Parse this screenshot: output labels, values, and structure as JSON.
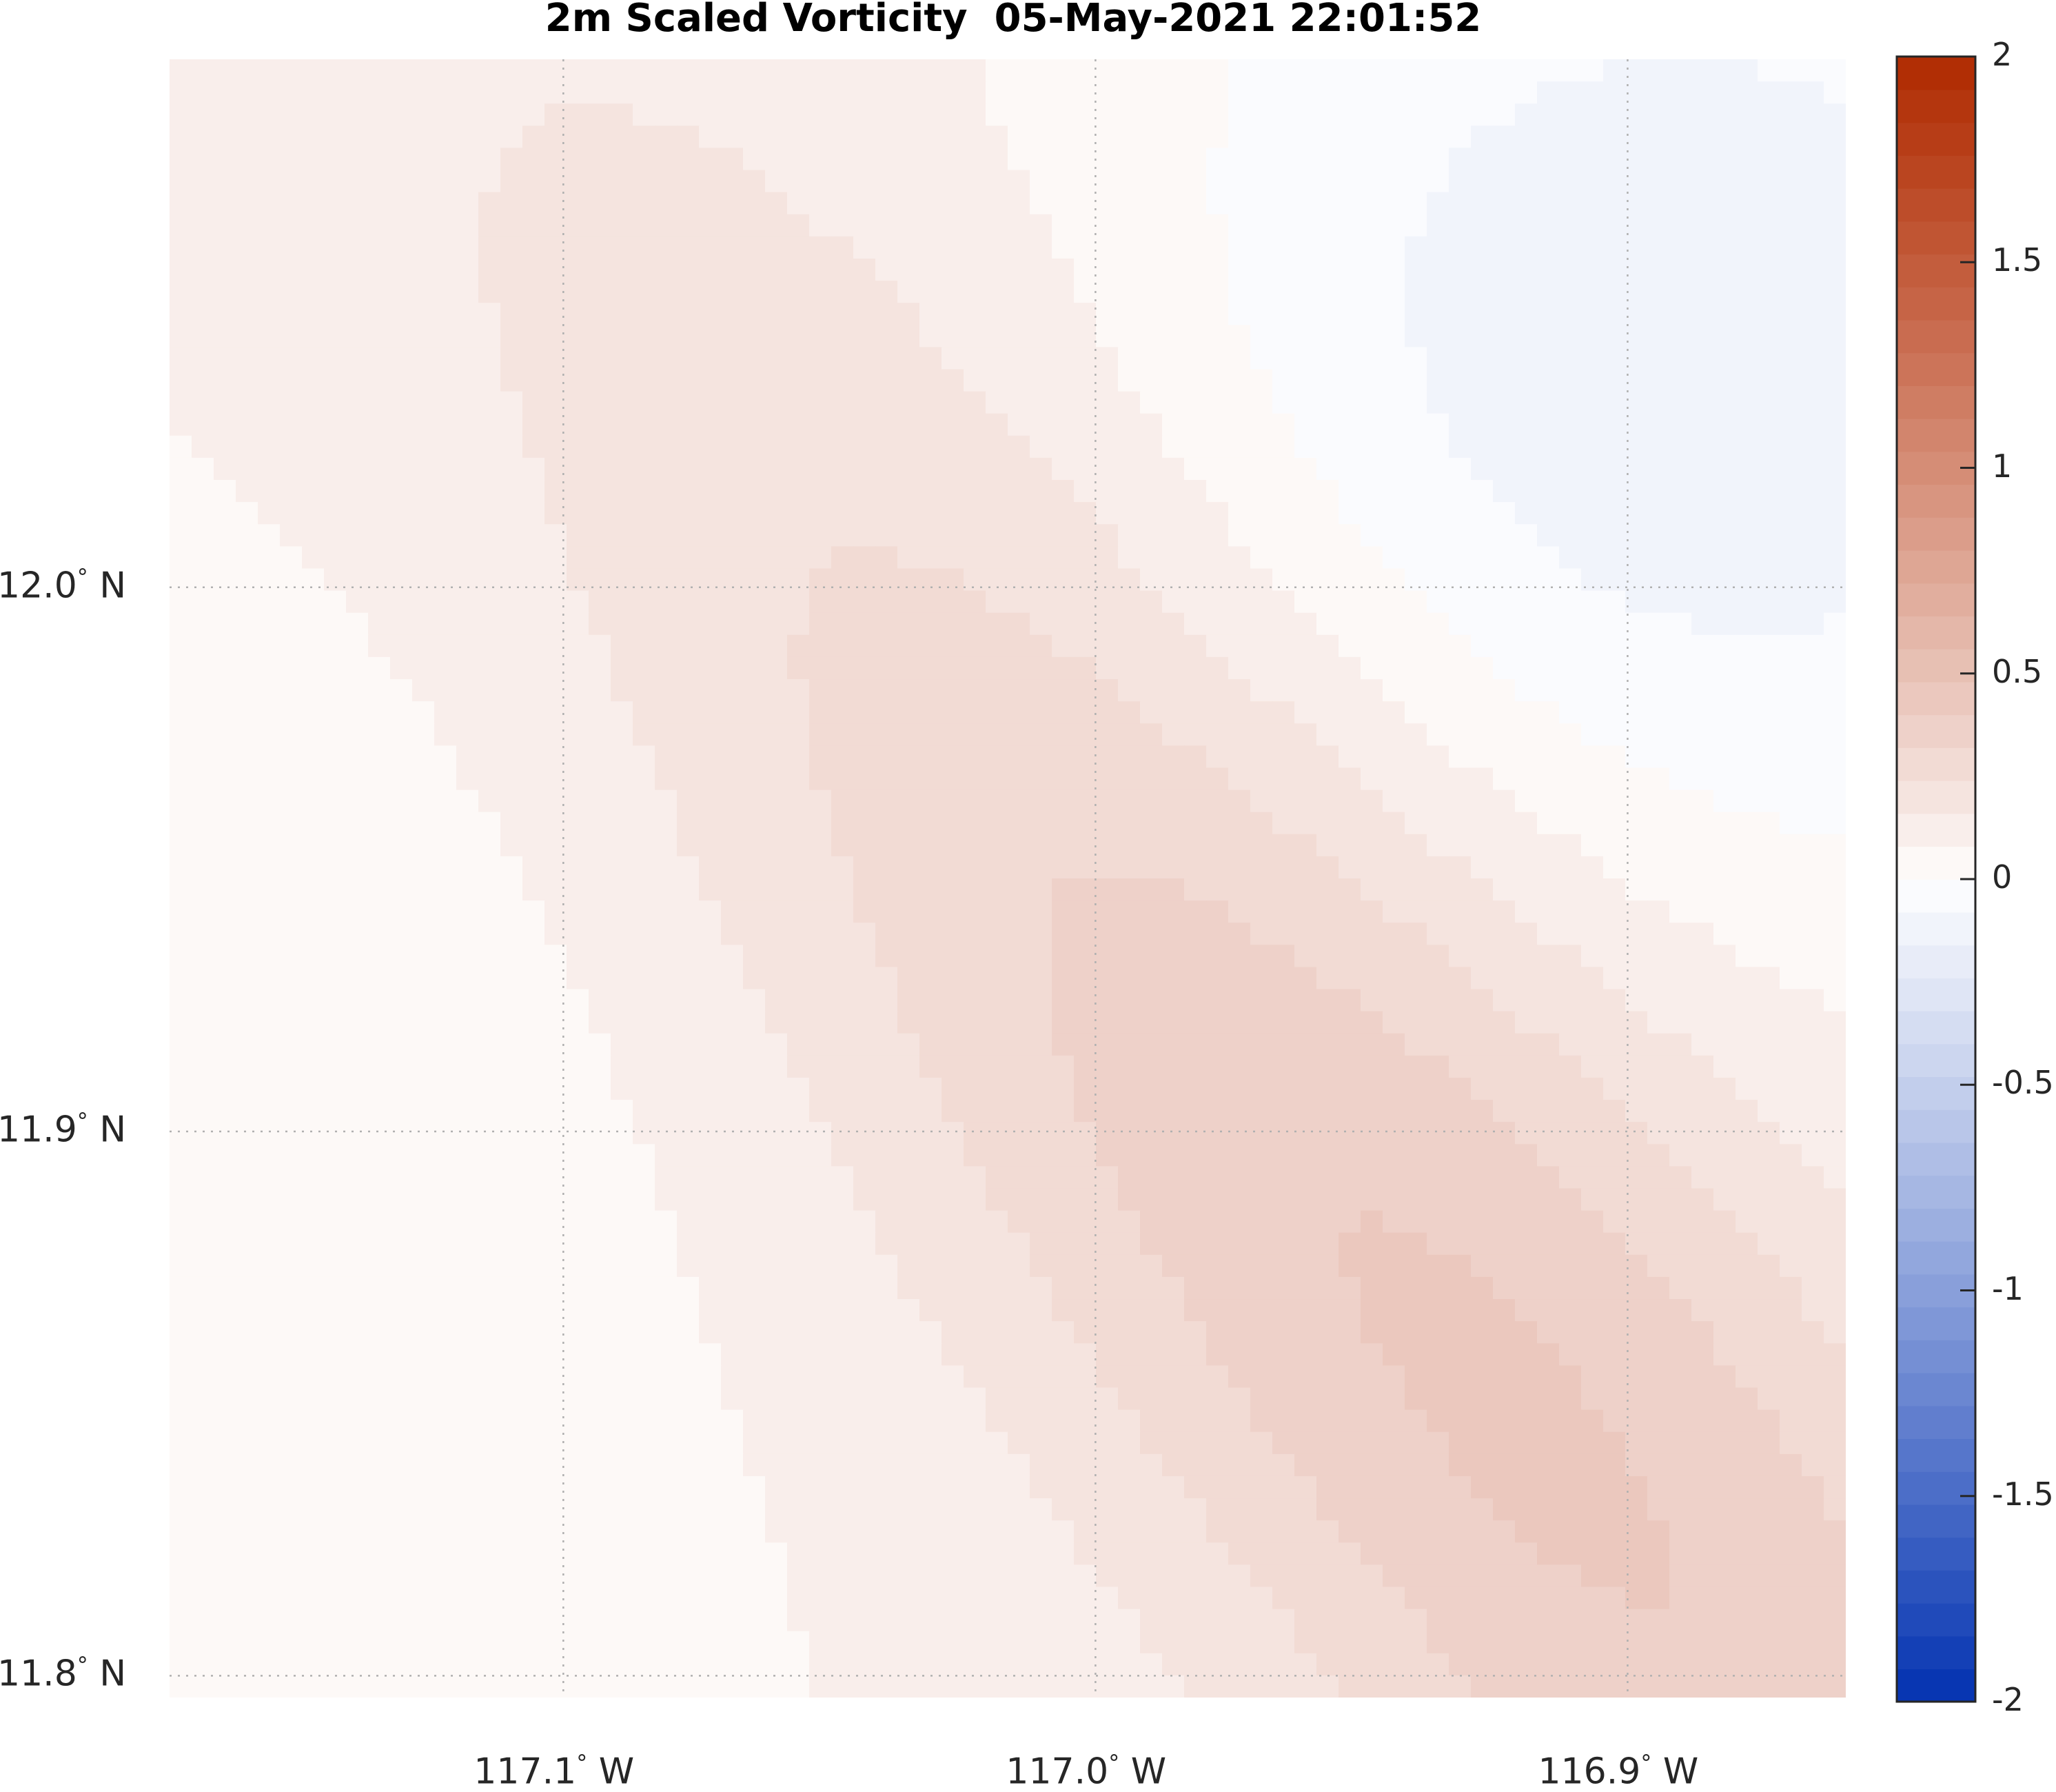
{
  "chart_data": {
    "type": "heatmap",
    "title": "2m Scaled Vorticity  05-May-2021 22:01:52",
    "xlabel": "",
    "ylabel": "",
    "x_ticks": [
      {
        "value": -117.1,
        "label": "117.1",
        "hemi": "W"
      },
      {
        "value": -117.0,
        "label": "117.0",
        "hemi": "W"
      },
      {
        "value": -116.9,
        "label": "116.9",
        "hemi": "W"
      }
    ],
    "y_ticks": [
      {
        "value": 12.0,
        "label": "12.0",
        "hemi": "N"
      },
      {
        "value": 11.9,
        "label": "11.9",
        "hemi": "N"
      },
      {
        "value": 11.8,
        "label": "11.8",
        "hemi": "N"
      }
    ],
    "xlim": [
      -117.174,
      -116.859
    ],
    "ylim": [
      11.796,
      12.097
    ],
    "grid": true,
    "colorbar": {
      "range": [
        -2,
        2
      ],
      "ticks": [
        2,
        1.5,
        1,
        0.5,
        0,
        -0.5,
        -1,
        -1.5,
        -2
      ],
      "tick_labels": [
        "2",
        "1.5",
        "1",
        "0.5",
        "0",
        "-0.5",
        "-1",
        "-1.5",
        "-2"
      ],
      "levels": 50,
      "low_color": "#0030b0",
      "mid_color": "#ffffff",
      "high_color": "#b02a00"
    },
    "field_range": [
      -0.05,
      0.45
    ],
    "field_max_location": {
      "lon": -116.93,
      "lat": 11.86,
      "value": 0.42
    },
    "field_min_location": {
      "lon": -116.89,
      "lat": 12.04,
      "value": -0.03
    }
  },
  "colors": {
    "background": "#ffffff",
    "grid": "#b0b0b0",
    "axis_text": "#262626"
  }
}
